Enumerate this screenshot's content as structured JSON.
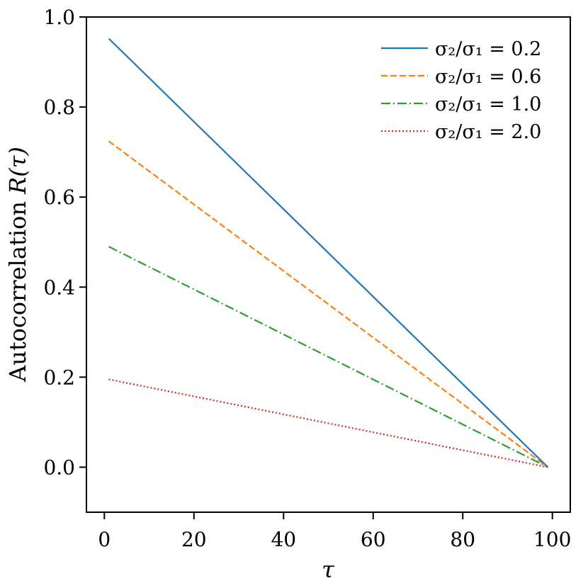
{
  "chart_data": {
    "type": "line",
    "title": "",
    "xlabel": "τ",
    "ylabel_prefix": "Autocorrelation ",
    "ylabel_symbol": "R(τ)",
    "xlim": [
      -4,
      104
    ],
    "ylim": [
      -0.1,
      1.0
    ],
    "x_ticks": [
      0,
      20,
      40,
      60,
      80,
      100
    ],
    "y_ticks": [
      0.0,
      0.2,
      0.4,
      0.6,
      0.8,
      1.0
    ],
    "x_tick_labels": [
      "0",
      "20",
      "40",
      "60",
      "80",
      "100"
    ],
    "y_tick_labels": [
      "0.0",
      "0.2",
      "0.4",
      "0.6",
      "0.8",
      "1.0"
    ],
    "grid": false,
    "legend_position": "top-right",
    "series": [
      {
        "name": "σ₂/σ₁ = 2.0",
        "color": "#d62728",
        "style": "dotted",
        "x": [
          1,
          99
        ],
        "y": [
          0.195,
          0.0
        ]
      },
      {
        "name": "σ₂/σ₁ = 1.0",
        "color": "#2ca02c",
        "style": "dashdot",
        "x": [
          1,
          99
        ],
        "y": [
          0.49,
          0.0
        ]
      },
      {
        "name": "σ₂/σ₁ = 0.6",
        "color": "#ff7f0e",
        "style": "dashed",
        "x": [
          1,
          99
        ],
        "y": [
          0.724,
          0.0
        ]
      },
      {
        "name": "σ₂/σ₁ = 0.2",
        "color": "#1f77b4",
        "style": "solid",
        "x": [
          1,
          99
        ],
        "y": [
          0.952,
          0.0
        ]
      }
    ]
  }
}
